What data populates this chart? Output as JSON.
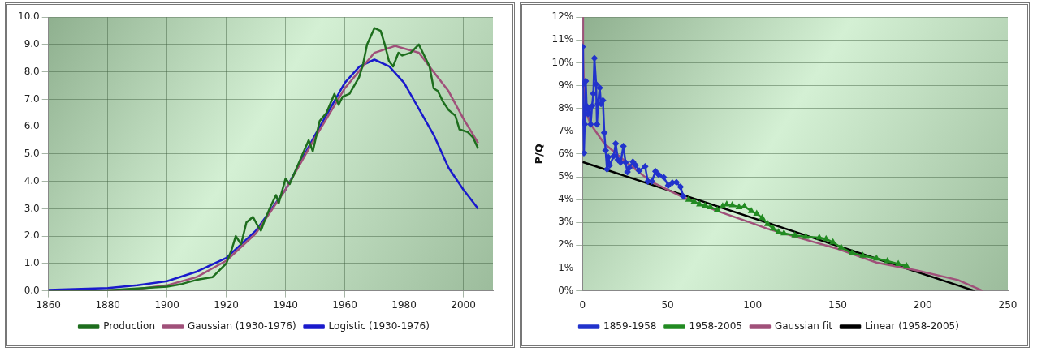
{
  "chart_data": [
    {
      "type": "line",
      "xlim": [
        1860,
        2010
      ],
      "xticks": [
        1860,
        1880,
        1900,
        1920,
        1940,
        1960,
        1980,
        2000
      ],
      "ylim": [
        0,
        10
      ],
      "yticks": [
        {
          "value": 0,
          "label": "0.0"
        },
        {
          "value": 1,
          "label": "1.0"
        },
        {
          "value": 2,
          "label": "2.0"
        },
        {
          "value": 3,
          "label": "3.0"
        },
        {
          "value": 4,
          "label": "4.0"
        },
        {
          "value": 5,
          "label": "5.0"
        },
        {
          "value": 6,
          "label": "6.0"
        },
        {
          "value": 7,
          "label": "7.0"
        },
        {
          "value": 8,
          "label": "8.0"
        },
        {
          "value": 9,
          "label": "9.0"
        },
        {
          "value": 10,
          "label": "10.0"
        }
      ],
      "grid": true,
      "legend": "bottom",
      "marker": "none",
      "line_style": "solid",
      "series": [
        {
          "name": "Production",
          "color": "#1e6e1e",
          "x": [
            1860,
            1880,
            1900,
            1905,
            1910,
            1915.4,
            1920,
            1921.8,
            1923.2,
            1925,
            1926.8,
            1929,
            1930.5,
            1931.7,
            1932.7,
            1934.6,
            1936.8,
            1937.7,
            1940,
            1941.4,
            1944.6,
            1947.8,
            1949.2,
            1951.5,
            1953.8,
            1956.5,
            1957.9,
            1959.3,
            1961.6,
            1964.8,
            1966.2,
            1967.5,
            1970,
            1972.1,
            1973.5,
            1974.9,
            1976.3,
            1978.1,
            1979.4,
            1982.2,
            1985,
            1986.8,
            1988.6,
            1990,
            1991.4,
            1993.2,
            1995.1,
            1997.3,
            1998.7,
            2001.5,
            2003.3,
            2005
          ],
          "values": [
            0,
            0.02,
            0.15,
            0.25,
            0.4,
            0.5,
            1.0,
            1.5,
            2.0,
            1.7,
            2.5,
            2.7,
            2.4,
            2.2,
            2.5,
            3.0,
            3.5,
            3.2,
            4.1,
            3.9,
            4.7,
            5.5,
            5.1,
            6.2,
            6.5,
            7.2,
            6.8,
            7.1,
            7.2,
            7.8,
            8.3,
            9.0,
            9.6,
            9.5,
            9.0,
            8.4,
            8.2,
            8.7,
            8.6,
            8.7,
            9.0,
            8.6,
            8.2,
            7.4,
            7.3,
            6.9,
            6.6,
            6.4,
            5.9,
            5.8,
            5.6,
            5.2
          ]
        },
        {
          "name": "Gaussian (1930-1976)",
          "color": "#a0507a",
          "x": [
            1860,
            1880,
            1890,
            1900,
            1910,
            1920,
            1930,
            1940,
            1950,
            1960,
            1970,
            1977,
            1985,
            1990,
            1995,
            2000,
            2005
          ],
          "values": [
            0,
            0.02,
            0.06,
            0.2,
            0.5,
            1.1,
            2.1,
            3.7,
            5.6,
            7.4,
            8.7,
            8.95,
            8.7,
            8.0,
            7.3,
            6.3,
            5.4
          ]
        },
        {
          "name": "Logistic (1930-1976)",
          "color": "#1a1acc",
          "x": [
            1860,
            1880,
            1890,
            1900,
            1910,
            1920,
            1930,
            1940,
            1950,
            1960,
            1965,
            1970,
            1975,
            1980,
            1990,
            1995,
            2000,
            2005
          ],
          "values": [
            0.03,
            0.1,
            0.2,
            0.35,
            0.7,
            1.2,
            2.2,
            3.7,
            5.7,
            7.6,
            8.2,
            8.45,
            8.2,
            7.6,
            5.7,
            4.5,
            3.7,
            3.0
          ]
        }
      ]
    },
    {
      "type": "line",
      "ylabel": "P/Q",
      "xlim": [
        0,
        250
      ],
      "xticks": [
        0,
        50,
        100,
        150,
        200,
        250
      ],
      "ylim": [
        0,
        12
      ],
      "yticks": [
        {
          "value": 0,
          "label": "0%"
        },
        {
          "value": 1,
          "label": "1%"
        },
        {
          "value": 2,
          "label": "2%"
        },
        {
          "value": 3,
          "label": "3%"
        },
        {
          "value": 4,
          "label": "4%"
        },
        {
          "value": 5,
          "label": "5%"
        },
        {
          "value": 6,
          "label": "6%"
        },
        {
          "value": 7,
          "label": "7%"
        },
        {
          "value": 8,
          "label": "8%"
        },
        {
          "value": 9,
          "label": "9%"
        },
        {
          "value": 10,
          "label": "10%"
        },
        {
          "value": 11,
          "label": "11%"
        },
        {
          "value": 12,
          "label": "12%"
        }
      ],
      "grid": "y",
      "legend": "bottom",
      "line_style": "solid",
      "series": [
        {
          "name": "1859-1958",
          "color": "#2233cc",
          "marker": "diamond",
          "x": [
            0,
            0.3,
            0.4,
            0.8,
            1.3,
            1.9,
            2.4,
            3.2,
            4,
            4.8,
            5.6,
            6.4,
            7,
            8,
            8.5,
            9.1,
            10.1,
            10.9,
            12,
            12.8,
            13.6,
            14.4,
            15.2,
            16,
            18.4,
            19.5,
            20.8,
            22.4,
            24,
            25.3,
            26.4,
            27.5,
            29.6,
            31.2,
            33.3,
            36.8,
            38.4,
            40.8,
            42.9,
            44.8,
            47.7,
            50.4,
            52.8,
            55.2,
            57.6,
            59.2
          ],
          "values": [
            10.7,
            9.06,
            7.4,
            6.04,
            7.3,
            9.2,
            8.1,
            7.76,
            8.0,
            7.3,
            8.1,
            8.65,
            10.2,
            9.06,
            7.3,
            8.2,
            8.9,
            8.2,
            8.35,
            6.93,
            6.16,
            5.33,
            5.86,
            5.51,
            5.92,
            6.46,
            5.75,
            5.63,
            6.34,
            5.63,
            5.21,
            5.39,
            5.66,
            5.51,
            5.27,
            5.45,
            4.8,
            4.8,
            5.24,
            5.09,
            4.98,
            4.62,
            4.74,
            4.76,
            4.56,
            4.15
          ]
        },
        {
          "name": "1958-2005",
          "color": "#228b22",
          "marker": "triangle",
          "x": [
            62.4,
            65.6,
            68.8,
            72,
            75.2,
            79.2,
            82.4,
            84.8,
            88,
            92,
            95.2,
            99.2,
            102.4,
            105.6,
            108.8,
            112,
            115.2,
            118.4,
            124.8,
            131.2,
            139.2,
            143.2,
            147.2,
            152,
            158.4,
            164.8,
            172.8,
            179.2,
            185.6,
            190.4
          ],
          "values": [
            4.0,
            3.91,
            3.79,
            3.73,
            3.67,
            3.55,
            3.71,
            3.79,
            3.76,
            3.67,
            3.7,
            3.5,
            3.38,
            3.2,
            2.93,
            2.73,
            2.57,
            2.52,
            2.43,
            2.37,
            2.33,
            2.27,
            2.13,
            1.9,
            1.66,
            1.54,
            1.42,
            1.3,
            1.18,
            1.09
          ]
        },
        {
          "name": "Gaussian fit",
          "color": "#a0507a",
          "marker": "none",
          "x": [
            0,
            0.3,
            0.8,
            2.4,
            4.8,
            12.8,
            24,
            40,
            59.2,
            79.2,
            100,
            108.8,
            150,
            172.8,
            196.5,
            220.8,
            235.2
          ],
          "values": [
            12,
            10.5,
            8.95,
            7.76,
            7.3,
            6.46,
            5.75,
            4.8,
            4.1,
            3.5,
            2.96,
            2.72,
            1.84,
            1.24,
            0.89,
            0.47,
            0
          ]
        },
        {
          "name": "Linear (1958-2005)",
          "color": "#000000",
          "marker": "none",
          "x": [
            0,
            230.4
          ],
          "values": [
            5.65,
            0
          ]
        }
      ]
    }
  ]
}
